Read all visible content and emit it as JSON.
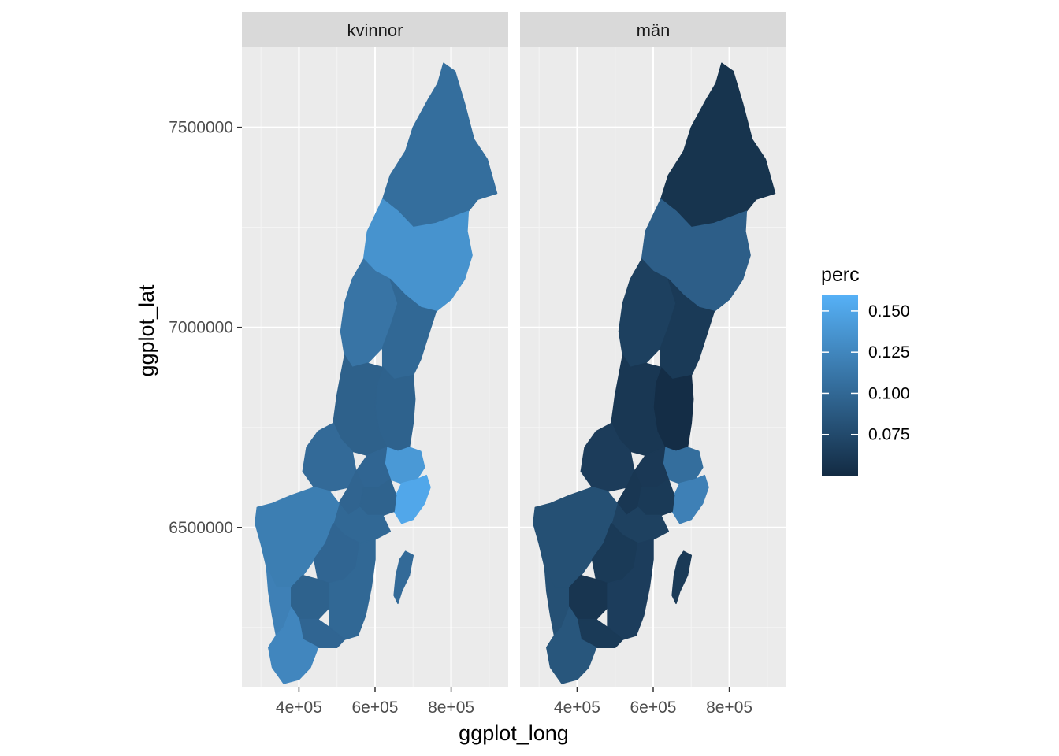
{
  "chart_data": {
    "type": "choropleth-map",
    "facets": [
      "kvinnor",
      "män"
    ],
    "xlabel": "ggplot_long",
    "ylabel": "ggplot_lat",
    "x_ticks": [
      400000,
      600000,
      800000
    ],
    "x_tick_labels": [
      "4e+05",
      "6e+05",
      "8e+05"
    ],
    "y_ticks": [
      6500000,
      7000000,
      7500000
    ],
    "y_tick_labels": [
      "6500000",
      "7000000",
      "7500000"
    ],
    "xlim": [
      250000,
      950000
    ],
    "ylim": [
      6100000,
      7700000
    ],
    "grid": true,
    "legend": {
      "title": "perc",
      "position": "right",
      "ticks": [
        0.075,
        0.1,
        0.125,
        0.15
      ],
      "tick_labels": [
        "0.075",
        "0.100",
        "0.125",
        "0.150"
      ],
      "range": [
        0.05,
        0.16
      ],
      "color_low": "#132B43",
      "color_high": "#56B1F7"
    },
    "regions": [
      {
        "id": "norrbotten",
        "kvinnor": 0.105,
        "män": 0.057,
        "poly": [
          [
            780000,
            7660000
          ],
          [
            810000,
            7640000
          ],
          [
            835000,
            7560000
          ],
          [
            860000,
            7470000
          ],
          [
            895000,
            7420000
          ],
          [
            920000,
            7335000
          ],
          [
            870000,
            7320000
          ],
          [
            845000,
            7290000
          ],
          [
            760000,
            7260000
          ],
          [
            700000,
            7250000
          ],
          [
            660000,
            7290000
          ],
          [
            620000,
            7320000
          ],
          [
            640000,
            7380000
          ],
          [
            680000,
            7440000
          ],
          [
            700000,
            7500000
          ],
          [
            740000,
            7570000
          ],
          [
            765000,
            7610000
          ]
        ]
      },
      {
        "id": "vasterbotten",
        "kvinnor": 0.135,
        "män": 0.092,
        "poly": [
          [
            620000,
            7320000
          ],
          [
            660000,
            7290000
          ],
          [
            700000,
            7250000
          ],
          [
            760000,
            7260000
          ],
          [
            845000,
            7290000
          ],
          [
            842000,
            7240000
          ],
          [
            855000,
            7180000
          ],
          [
            835000,
            7120000
          ],
          [
            800000,
            7070000
          ],
          [
            760000,
            7040000
          ],
          [
            720000,
            7050000
          ],
          [
            680000,
            7080000
          ],
          [
            640000,
            7120000
          ],
          [
            600000,
            7140000
          ],
          [
            570000,
            7170000
          ],
          [
            580000,
            7240000
          ]
        ]
      },
      {
        "id": "jamtland",
        "kvinnor": 0.11,
        "män": 0.067,
        "poly": [
          [
            570000,
            7170000
          ],
          [
            600000,
            7140000
          ],
          [
            640000,
            7120000
          ],
          [
            660000,
            7060000
          ],
          [
            640000,
            7000000
          ],
          [
            620000,
            6950000
          ],
          [
            580000,
            6910000
          ],
          [
            540000,
            6900000
          ],
          [
            520000,
            6930000
          ],
          [
            510000,
            6990000
          ],
          [
            520000,
            7060000
          ],
          [
            540000,
            7120000
          ]
        ]
      },
      {
        "id": "vasternorrland",
        "kvinnor": 0.1,
        "män": 0.062,
        "poly": [
          [
            640000,
            7120000
          ],
          [
            680000,
            7080000
          ],
          [
            720000,
            7050000
          ],
          [
            760000,
            7040000
          ],
          [
            740000,
            6980000
          ],
          [
            720000,
            6920000
          ],
          [
            700000,
            6880000
          ],
          [
            650000,
            6870000
          ],
          [
            620000,
            6900000
          ],
          [
            620000,
            6950000
          ],
          [
            640000,
            7000000
          ],
          [
            660000,
            7060000
          ]
        ]
      },
      {
        "id": "gavleborg",
        "kvinnor": 0.095,
        "män": 0.052,
        "poly": [
          [
            620000,
            6900000
          ],
          [
            650000,
            6870000
          ],
          [
            700000,
            6880000
          ],
          [
            705000,
            6820000
          ],
          [
            700000,
            6760000
          ],
          [
            690000,
            6700000
          ],
          [
            660000,
            6690000
          ],
          [
            630000,
            6700000
          ],
          [
            610000,
            6740000
          ],
          [
            600000,
            6800000
          ],
          [
            605000,
            6860000
          ]
        ]
      },
      {
        "id": "dalarna",
        "kvinnor": 0.094,
        "män": 0.06,
        "poly": [
          [
            520000,
            6930000
          ],
          [
            540000,
            6900000
          ],
          [
            580000,
            6910000
          ],
          [
            620000,
            6900000
          ],
          [
            605000,
            6860000
          ],
          [
            600000,
            6800000
          ],
          [
            610000,
            6740000
          ],
          [
            630000,
            6700000
          ],
          [
            580000,
            6680000
          ],
          [
            540000,
            6690000
          ],
          [
            510000,
            6720000
          ],
          [
            490000,
            6760000
          ],
          [
            500000,
            6830000
          ],
          [
            510000,
            6880000
          ]
        ]
      },
      {
        "id": "varmland",
        "kvinnor": 0.102,
        "män": 0.064,
        "poly": [
          [
            490000,
            6760000
          ],
          [
            510000,
            6720000
          ],
          [
            540000,
            6690000
          ],
          [
            550000,
            6640000
          ],
          [
            530000,
            6600000
          ],
          [
            480000,
            6590000
          ],
          [
            440000,
            6600000
          ],
          [
            410000,
            6640000
          ],
          [
            420000,
            6700000
          ],
          [
            450000,
            6740000
          ]
        ]
      },
      {
        "id": "uppsala",
        "kvinnor": 0.14,
        "män": 0.105,
        "poly": [
          [
            630000,
            6700000
          ],
          [
            660000,
            6690000
          ],
          [
            690000,
            6700000
          ],
          [
            720000,
            6690000
          ],
          [
            730000,
            6650000
          ],
          [
            710000,
            6620000
          ],
          [
            670000,
            6610000
          ],
          [
            640000,
            6620000
          ],
          [
            625000,
            6660000
          ]
        ]
      },
      {
        "id": "stockholm",
        "kvinnor": 0.152,
        "män": 0.12,
        "poly": [
          [
            670000,
            6610000
          ],
          [
            710000,
            6620000
          ],
          [
            735000,
            6630000
          ],
          [
            745000,
            6600000
          ],
          [
            730000,
            6560000
          ],
          [
            700000,
            6520000
          ],
          [
            670000,
            6510000
          ],
          [
            650000,
            6540000
          ],
          [
            655000,
            6580000
          ]
        ]
      },
      {
        "id": "vastmanland",
        "kvinnor": 0.098,
        "män": 0.061,
        "poly": [
          [
            550000,
            6640000
          ],
          [
            580000,
            6680000
          ],
          [
            630000,
            6700000
          ],
          [
            625000,
            6660000
          ],
          [
            640000,
            6620000
          ],
          [
            610000,
            6600000
          ],
          [
            570000,
            6600000
          ]
        ]
      },
      {
        "id": "orebro",
        "kvinnor": 0.097,
        "män": 0.06,
        "poly": [
          [
            530000,
            6600000
          ],
          [
            550000,
            6640000
          ],
          [
            570000,
            6600000
          ],
          [
            560000,
            6550000
          ],
          [
            530000,
            6530000
          ],
          [
            505000,
            6560000
          ]
        ]
      },
      {
        "id": "sodermanland",
        "kvinnor": 0.096,
        "män": 0.062,
        "poly": [
          [
            570000,
            6600000
          ],
          [
            610000,
            6600000
          ],
          [
            640000,
            6620000
          ],
          [
            655000,
            6580000
          ],
          [
            650000,
            6540000
          ],
          [
            620000,
            6530000
          ],
          [
            580000,
            6530000
          ],
          [
            560000,
            6550000
          ]
        ]
      },
      {
        "id": "ostergotland",
        "kvinnor": 0.1,
        "män": 0.068,
        "poly": [
          [
            505000,
            6560000
          ],
          [
            530000,
            6530000
          ],
          [
            560000,
            6550000
          ],
          [
            580000,
            6530000
          ],
          [
            620000,
            6530000
          ],
          [
            640000,
            6490000
          ],
          [
            600000,
            6470000
          ],
          [
            560000,
            6460000
          ],
          [
            520000,
            6480000
          ],
          [
            490000,
            6510000
          ]
        ]
      },
      {
        "id": "vastra_gotaland",
        "kvinnor": 0.118,
        "män": 0.08,
        "poly": [
          [
            290000,
            6550000
          ],
          [
            330000,
            6560000
          ],
          [
            380000,
            6580000
          ],
          [
            440000,
            6600000
          ],
          [
            480000,
            6590000
          ],
          [
            505000,
            6560000
          ],
          [
            490000,
            6510000
          ],
          [
            470000,
            6460000
          ],
          [
            440000,
            6420000
          ],
          [
            410000,
            6380000
          ],
          [
            380000,
            6350000
          ],
          [
            340000,
            6350000
          ],
          [
            315000,
            6400000
          ],
          [
            300000,
            6460000
          ],
          [
            285000,
            6510000
          ]
        ]
      },
      {
        "id": "jonkoping",
        "kvinnor": 0.098,
        "män": 0.062,
        "poly": [
          [
            440000,
            6420000
          ],
          [
            470000,
            6460000
          ],
          [
            490000,
            6510000
          ],
          [
            520000,
            6480000
          ],
          [
            560000,
            6460000
          ],
          [
            550000,
            6400000
          ],
          [
            520000,
            6370000
          ],
          [
            480000,
            6360000
          ],
          [
            450000,
            6370000
          ]
        ]
      },
      {
        "id": "halland",
        "kvinnor": 0.12,
        "män": 0.08,
        "poly": [
          [
            315000,
            6400000
          ],
          [
            340000,
            6350000
          ],
          [
            380000,
            6350000
          ],
          [
            380000,
            6300000
          ],
          [
            360000,
            6250000
          ],
          [
            340000,
            6230000
          ],
          [
            330000,
            6280000
          ],
          [
            320000,
            6340000
          ]
        ]
      },
      {
        "id": "kronoberg",
        "kvinnor": 0.095,
        "män": 0.058,
        "poly": [
          [
            380000,
            6350000
          ],
          [
            410000,
            6380000
          ],
          [
            450000,
            6370000
          ],
          [
            480000,
            6360000
          ],
          [
            480000,
            6300000
          ],
          [
            450000,
            6270000
          ],
          [
            400000,
            6270000
          ],
          [
            380000,
            6300000
          ]
        ]
      },
      {
        "id": "kalmar",
        "kvinnor": 0.1,
        "män": 0.065,
        "poly": [
          [
            480000,
            6360000
          ],
          [
            520000,
            6370000
          ],
          [
            550000,
            6400000
          ],
          [
            560000,
            6460000
          ],
          [
            600000,
            6470000
          ],
          [
            600000,
            6420000
          ],
          [
            590000,
            6350000
          ],
          [
            575000,
            6280000
          ],
          [
            555000,
            6230000
          ],
          [
            520000,
            6220000
          ],
          [
            480000,
            6250000
          ],
          [
            480000,
            6300000
          ]
        ]
      },
      {
        "id": "blekinge",
        "kvinnor": 0.098,
        "män": 0.062,
        "poly": [
          [
            400000,
            6270000
          ],
          [
            450000,
            6270000
          ],
          [
            480000,
            6250000
          ],
          [
            520000,
            6220000
          ],
          [
            500000,
            6200000
          ],
          [
            450000,
            6200000
          ],
          [
            410000,
            6220000
          ]
        ]
      },
      {
        "id": "skane",
        "kvinnor": 0.125,
        "män": 0.085,
        "poly": [
          [
            340000,
            6230000
          ],
          [
            360000,
            6250000
          ],
          [
            380000,
            6300000
          ],
          [
            400000,
            6270000
          ],
          [
            410000,
            6220000
          ],
          [
            450000,
            6200000
          ],
          [
            430000,
            6150000
          ],
          [
            400000,
            6120000
          ],
          [
            360000,
            6110000
          ],
          [
            330000,
            6150000
          ],
          [
            320000,
            6200000
          ]
        ]
      },
      {
        "id": "gotland",
        "kvinnor": 0.102,
        "män": 0.062,
        "poly": [
          [
            680000,
            6440000
          ],
          [
            700000,
            6430000
          ],
          [
            690000,
            6380000
          ],
          [
            670000,
            6340000
          ],
          [
            660000,
            6310000
          ],
          [
            650000,
            6330000
          ],
          [
            655000,
            6380000
          ],
          [
            665000,
            6420000
          ]
        ]
      }
    ]
  }
}
